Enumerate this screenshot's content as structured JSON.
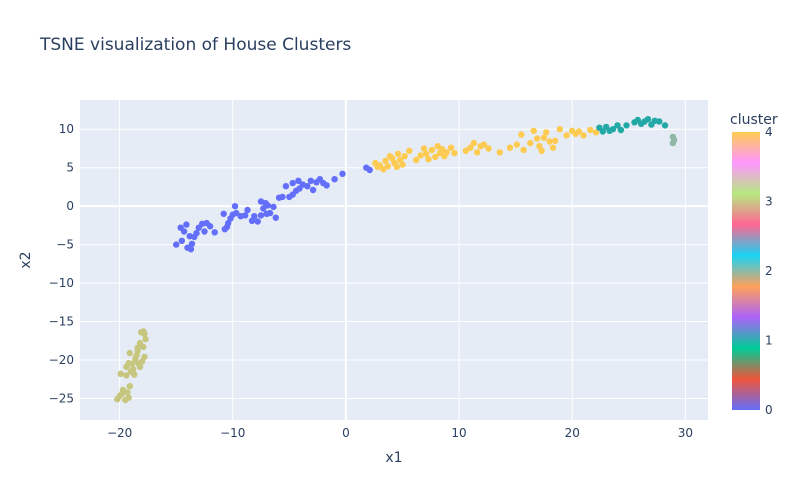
{
  "chart_data": {
    "type": "scatter",
    "title": "TSNE visualization of House Clusters",
    "xlabel": "x1",
    "ylabel": "x2",
    "xlim": [
      -23.5,
      32
    ],
    "ylim": [
      -27.8,
      13.8
    ],
    "xticks": [
      -20,
      -10,
      0,
      10,
      20,
      30
    ],
    "yticks": [
      10,
      5,
      0,
      -5,
      -10,
      -15,
      -20,
      -25
    ],
    "grid": true,
    "colorbar": {
      "title": "cluster",
      "min": 0,
      "max": 4,
      "ticks": [
        0,
        1,
        2,
        3,
        4
      ],
      "colorscale": [
        "#636efa",
        "#EF553B",
        "#00cc96",
        "#ab63fa",
        "#FFA15A",
        "#19d3f3",
        "#FF6692",
        "#B6E880",
        "#FF97FF",
        "#FECB52"
      ]
    },
    "series": [
      {
        "cluster": 0,
        "color": "#636efa",
        "points": [
          [
            -15,
            -5
          ],
          [
            -14.5,
            -4.5
          ],
          [
            -14.6,
            -2.8
          ],
          [
            -14.3,
            -3.3
          ],
          [
            -14.1,
            -2.4
          ],
          [
            -14,
            -5.4
          ],
          [
            -13.7,
            -5.6
          ],
          [
            -13.6,
            -4.9
          ],
          [
            -13.4,
            -4
          ],
          [
            -13.8,
            -3.9
          ],
          [
            -13.2,
            -3.5
          ],
          [
            -13,
            -2.8
          ],
          [
            -12.7,
            -2.3
          ],
          [
            -12.5,
            -3.3
          ],
          [
            -12.3,
            -2.2
          ],
          [
            -12,
            -2.6
          ],
          [
            -11.6,
            -3.4
          ],
          [
            -10.8,
            -1
          ],
          [
            -10.7,
            -3
          ],
          [
            -10.5,
            -2.7
          ],
          [
            -10.4,
            -2.2
          ],
          [
            -10.2,
            -1.6
          ],
          [
            -10,
            -1.1
          ],
          [
            -9.7,
            -0.9
          ],
          [
            -9.8,
            0
          ],
          [
            -9.3,
            -1.3
          ],
          [
            -8.9,
            -1.2
          ],
          [
            -8.7,
            -0.5
          ],
          [
            -8.3,
            -1.9
          ],
          [
            -8.1,
            -1.3
          ],
          [
            -7.8,
            -2
          ],
          [
            -7.5,
            -1.2
          ],
          [
            -7.3,
            -0.3
          ],
          [
            -7,
            -1
          ],
          [
            -6.7,
            -0.9
          ],
          [
            -7.5,
            0.6
          ],
          [
            -7.1,
            0.4
          ],
          [
            -6.9,
            0.1
          ],
          [
            -6.4,
            -0.1
          ],
          [
            -6.2,
            -1.5
          ],
          [
            -5.9,
            1.1
          ],
          [
            -5.6,
            1.2
          ],
          [
            -5.3,
            2.6
          ],
          [
            -5,
            1.2
          ],
          [
            -4.7,
            1.5
          ],
          [
            -4.4,
            2
          ],
          [
            -4.1,
            2.3
          ],
          [
            -4.7,
            3
          ],
          [
            -4.2,
            3.3
          ],
          [
            -3.8,
            2.8
          ],
          [
            -3.4,
            2.6
          ],
          [
            -3.1,
            3.3
          ],
          [
            -2.9,
            2.1
          ],
          [
            -2.6,
            3.1
          ],
          [
            -2.3,
            3.5
          ],
          [
            -2,
            3
          ],
          [
            -1.7,
            2.7
          ],
          [
            -1,
            3.5
          ],
          [
            -0.3,
            4.2
          ],
          [
            1.8,
            5
          ],
          [
            2.1,
            4.7
          ]
        ]
      },
      {
        "cluster": 3,
        "color": "#c7c67e",
        "points": [
          [
            -20.2,
            -25.1
          ],
          [
            -20,
            -24.7
          ],
          [
            -19.8,
            -24.4
          ],
          [
            -19.7,
            -23.9
          ],
          [
            -19.5,
            -25.2
          ],
          [
            -19.3,
            -24.2
          ],
          [
            -19.2,
            -24.9
          ],
          [
            -19.1,
            -23.4
          ],
          [
            -19.9,
            -21.8
          ],
          [
            -19.4,
            -20.9
          ],
          [
            -19,
            -21.5
          ],
          [
            -18.9,
            -20.5
          ],
          [
            -18.7,
            -21.9
          ],
          [
            -18.6,
            -20.1
          ],
          [
            -18.5,
            -19.4
          ],
          [
            -18.4,
            -18.8
          ],
          [
            -19.1,
            -19.1
          ],
          [
            -18.3,
            -20.5
          ],
          [
            -18.2,
            -17.8
          ],
          [
            -18.1,
            -16.4
          ],
          [
            -17.9,
            -18.3
          ],
          [
            -17.8,
            -16.6
          ],
          [
            -17.7,
            -17.3
          ],
          [
            -17.8,
            -19.6
          ],
          [
            -18,
            -20.2
          ],
          [
            -18.4,
            -18.4
          ],
          [
            -18.6,
            -19.8
          ],
          [
            -19.2,
            -20.4
          ],
          [
            -19.4,
            -22
          ],
          [
            -18.8,
            -21.2
          ],
          [
            -18.2,
            -20.9
          ],
          [
            -17.9,
            -16.3
          ]
        ]
      },
      {
        "cluster": 4,
        "color": "#FECB52",
        "points": [
          [
            2.6,
            5.6
          ],
          [
            2.8,
            5.1
          ],
          [
            3,
            5.3
          ],
          [
            3.3,
            4.8
          ],
          [
            3.5,
            5.9
          ],
          [
            3.7,
            5.2
          ],
          [
            3.9,
            6.5
          ],
          [
            4.1,
            6.2
          ],
          [
            4.3,
            5.6
          ],
          [
            4.5,
            5.1
          ],
          [
            4.6,
            6.8
          ],
          [
            4.8,
            6
          ],
          [
            5,
            5.4
          ],
          [
            5.2,
            6.5
          ],
          [
            5.6,
            7.2
          ],
          [
            6.2,
            6
          ],
          [
            6.6,
            6.6
          ],
          [
            6.9,
            7.5
          ],
          [
            7.1,
            6.8
          ],
          [
            7.3,
            6.1
          ],
          [
            7.6,
            7.3
          ],
          [
            7.9,
            6.4
          ],
          [
            8.1,
            7.8
          ],
          [
            8.3,
            6.9
          ],
          [
            8.5,
            7.4
          ],
          [
            8.7,
            6.5
          ],
          [
            8.9,
            7
          ],
          [
            9.3,
            7.6
          ],
          [
            9.6,
            6.9
          ],
          [
            10.6,
            7.2
          ],
          [
            11,
            7.6
          ],
          [
            11.3,
            8.2
          ],
          [
            11.6,
            7
          ],
          [
            11.9,
            7.8
          ],
          [
            12.2,
            8
          ],
          [
            12.6,
            7.5
          ],
          [
            13.6,
            7
          ],
          [
            14.5,
            7.6
          ],
          [
            15.1,
            8
          ],
          [
            15.7,
            7.3
          ],
          [
            15.5,
            9.3
          ],
          [
            16.3,
            8.2
          ],
          [
            16.6,
            9.8
          ],
          [
            16.9,
            8.8
          ],
          [
            17.1,
            7.8
          ],
          [
            17.3,
            7.2
          ],
          [
            17.5,
            8.9
          ],
          [
            17.7,
            9.6
          ],
          [
            18,
            8.4
          ],
          [
            18.3,
            7.6
          ],
          [
            18.5,
            8.5
          ],
          [
            18.9,
            10
          ],
          [
            19.5,
            9.2
          ],
          [
            20,
            9.8
          ],
          [
            20.3,
            9.4
          ],
          [
            20.6,
            9.7
          ],
          [
            21,
            9.2
          ],
          [
            21.6,
            9.9
          ],
          [
            22.1,
            9.6
          ]
        ]
      },
      {
        "cluster": 2,
        "color": "#22a9a5",
        "points": [
          [
            22.4,
            10.2
          ],
          [
            22.7,
            9.7
          ],
          [
            23,
            10.3
          ],
          [
            23.3,
            9.8
          ],
          [
            23.6,
            10
          ],
          [
            24,
            10.5
          ],
          [
            24.3,
            9.9
          ],
          [
            24.8,
            10.5
          ],
          [
            25.5,
            10.9
          ],
          [
            25.8,
            11.2
          ],
          [
            26.1,
            10.7
          ],
          [
            26.4,
            11
          ],
          [
            26.7,
            11.3
          ],
          [
            27,
            10.6
          ],
          [
            27.3,
            11.1
          ],
          [
            27.7,
            11
          ],
          [
            28.2,
            10.5
          ]
        ]
      },
      {
        "cluster": 3,
        "color": "#8fb8a6",
        "points": [
          [
            28.9,
            8.2
          ],
          [
            29,
            8.6
          ],
          [
            28.9,
            9
          ]
        ]
      }
    ]
  }
}
